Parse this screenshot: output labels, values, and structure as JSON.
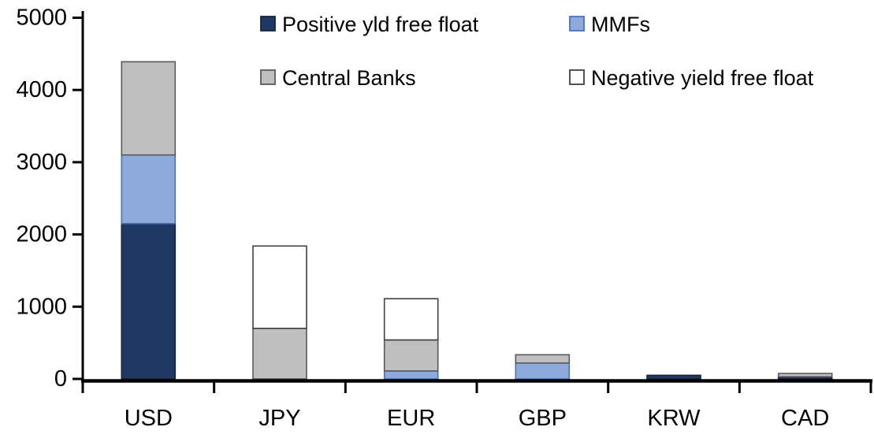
{
  "chart_data": {
    "type": "bar",
    "stacked": true,
    "title": "",
    "xlabel": "",
    "ylabel": "",
    "categories": [
      "USD",
      "JPY",
      "EUR",
      "GBP",
      "KRW",
      "CAD"
    ],
    "series": [
      {
        "name": "Positive yld free float",
        "color": "#1F3864",
        "border": "#16233d",
        "values": [
          2150,
          0,
          0,
          0,
          50,
          30
        ]
      },
      {
        "name": "MMFs",
        "color": "#8EA9DB",
        "border": "#4a72b8",
        "values": [
          950,
          0,
          110,
          220,
          0,
          0
        ]
      },
      {
        "name": "Central Banks",
        "color": "#BFBFBF",
        "border": "#595959",
        "values": [
          1290,
          700,
          430,
          115,
          0,
          45
        ]
      },
      {
        "name": "Negative yield free float",
        "color": "#FFFFFF",
        "border": "#404040",
        "values": [
          0,
          1140,
          570,
          0,
          0,
          0
        ]
      }
    ],
    "totals": {
      "USD": 4390,
      "JPY": 1840,
      "EUR": 1110,
      "GBP": 335,
      "KRW": 50,
      "CAD": 75
    },
    "ylim": [
      0,
      5000
    ],
    "ytick_step": 1000,
    "ytick_labels": [
      "0",
      "1000",
      "2000",
      "3000",
      "4000",
      "5000"
    ],
    "grid": false,
    "legend_position": "top",
    "legend_rows": [
      [
        "Positive yld free float",
        "MMFs"
      ],
      [
        "Central Banks",
        "Negative yield free float"
      ]
    ],
    "axis_color": "#000000",
    "text_color": "#000000",
    "background": "#FFFFFF"
  }
}
